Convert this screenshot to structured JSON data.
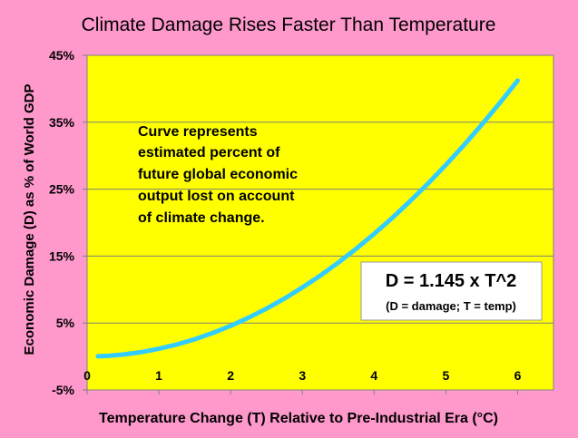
{
  "chart_data": {
    "type": "line",
    "title": "Climate Damage Rises Faster Than Temperature",
    "xlabel": "Temperature Change (T) Relative to Pre-Industrial Era (°C)",
    "ylabel": "Economic Damage (D) as % of World GDP",
    "xlim": [
      0,
      6.5
    ],
    "ylim": [
      -5,
      45
    ],
    "x_ticks": [
      0,
      1,
      2,
      3,
      4,
      5,
      6
    ],
    "y_ticks": [
      -5,
      5,
      15,
      25,
      35,
      45
    ],
    "y_tick_labels": [
      "-5%",
      "5%",
      "15%",
      "25%",
      "35%",
      "45%"
    ],
    "grid": "horizontal",
    "colors": {
      "page": "#ff99cc",
      "plot_area": "#ffff00",
      "line": "#33ccff",
      "gridline": "#808080"
    },
    "series": [
      {
        "x": [
          0.15,
          0.3,
          0.5,
          0.75,
          1.0,
          1.25,
          1.5,
          1.75,
          2.0,
          2.25,
          2.5,
          2.75,
          3.0,
          3.25,
          3.5,
          3.75,
          4.0,
          4.25,
          4.5,
          4.75,
          5.0,
          5.25,
          5.5,
          5.75,
          6.0
        ],
        "y": [
          0.03,
          0.1,
          0.29,
          0.64,
          1.15,
          1.79,
          2.58,
          3.51,
          4.58,
          5.8,
          7.16,
          8.66,
          10.31,
          12.09,
          14.03,
          16.1,
          18.32,
          20.68,
          23.19,
          25.83,
          28.63,
          31.56,
          34.64,
          37.86,
          41.22
        ]
      }
    ],
    "annotations": {
      "note_lines": [
        "Curve represents",
        "estimated percent of",
        "future global economic",
        "output lost on account",
        "of climate change."
      ],
      "equation": "D = 1.145 x T^2",
      "equation_note": "(D = damage; T = temp)"
    }
  }
}
